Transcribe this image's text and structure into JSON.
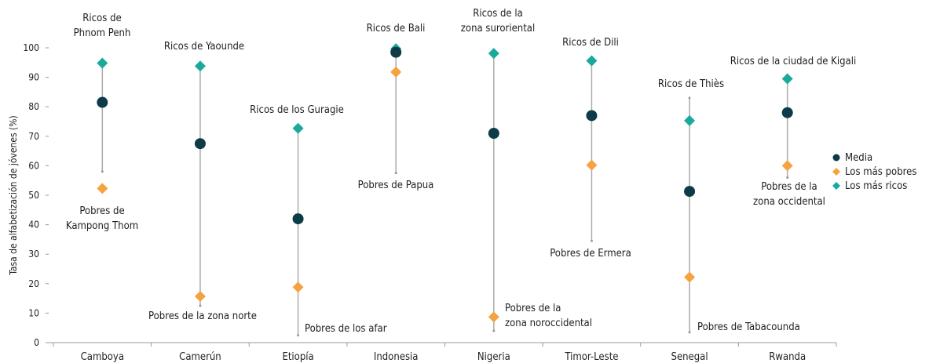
{
  "chart_data": {
    "type": "dot",
    "y_label": "Tasa de alfabetización de jóvenes (%)",
    "categories": [
      "Camboya",
      "Camerún",
      "Etiopía",
      "Indonesia",
      "Nigeria",
      "Timor-Leste",
      "Senegal",
      "Rwanda"
    ],
    "series": [
      {
        "name": "Media",
        "color": "#0d3b47",
        "marker": "circle",
        "values": [
          81.5,
          67.5,
          42,
          98.5,
          71,
          77,
          51.3,
          78
        ]
      },
      {
        "name": "Los más pobres",
        "color": "#f5a340",
        "marker": "diamond",
        "values": [
          52.3,
          15.7,
          18.8,
          91.8,
          8.7,
          60.2,
          22.2,
          60
        ]
      },
      {
        "name": "Los más ricos",
        "color": "#1aaa9d",
        "marker": "diamond",
        "values": [
          94.8,
          93.8,
          72.7,
          99.7,
          98.1,
          95.6,
          75.3,
          89.5
        ]
      }
    ],
    "range_low": [
      58,
      12.5,
      2.5,
      57.5,
      4,
      34.5,
      3.5,
      56
    ],
    "range_high": [
      95,
      95,
      72,
      99.5,
      98,
      96,
      83,
      90
    ],
    "rich_labels": [
      [
        "Ricos de",
        "Phnom Penh"
      ],
      [
        "Ricos de Yaounde"
      ],
      [
        "Ricos de los Guragie"
      ],
      [
        "Ricos de Bali"
      ],
      [
        "Ricos de la",
        "zona suroriental"
      ],
      [
        "Ricos de Dili"
      ],
      [
        "Ricos de Thiès"
      ],
      [
        "Ricos de la ciudad de Kigali"
      ]
    ],
    "poor_labels": [
      [
        "Pobres de",
        "Kampong Thom"
      ],
      [
        "Pobres de la zona norte"
      ],
      [
        "Pobres de los afar"
      ],
      [
        "Pobres de Papua"
      ],
      [
        "Pobres de la",
        "zona noroccidental"
      ],
      [
        "Pobres de Ermera"
      ],
      [
        "Pobres de Tabacounda"
      ],
      [
        "Pobres de la",
        "zona occidental"
      ]
    ],
    "ylim": [
      0,
      100
    ],
    "yticks": [
      0,
      10,
      20,
      30,
      40,
      50,
      60,
      70,
      80,
      90,
      100
    ],
    "legend": "right"
  }
}
